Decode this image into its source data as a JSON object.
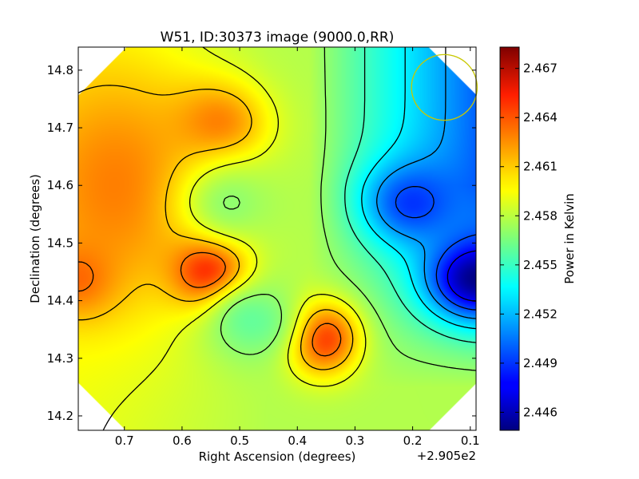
{
  "chart_data": {
    "type": "heatmap",
    "title": "W51, ID:30373 image (9000.0,RR)",
    "xlabel": "Right Ascension (degrees)",
    "ylabel": "Declination (degrees)",
    "x_offset_label": "+2.905e2",
    "x_ticks": [
      "0.7",
      "0.6",
      "0.5",
      "0.4",
      "0.3",
      "0.2",
      "0.1"
    ],
    "x_tick_values": [
      0.7,
      0.6,
      0.5,
      0.4,
      0.3,
      0.2,
      0.1
    ],
    "xlim": [
      0.78,
      0.09
    ],
    "y_ticks": [
      "14.2",
      "14.3",
      "14.4",
      "14.5",
      "14.6",
      "14.7",
      "14.8"
    ],
    "y_tick_values": [
      14.2,
      14.3,
      14.4,
      14.5,
      14.6,
      14.7,
      14.8
    ],
    "ylim": [
      14.175,
      14.84
    ],
    "colorbar": {
      "label": "Power in Kelvin",
      "ticks": [
        "2.467",
        "2.464",
        "2.461",
        "2.458",
        "2.455",
        "2.452",
        "2.449",
        "2.446"
      ],
      "tick_values": [
        2.467,
        2.464,
        2.461,
        2.458,
        2.455,
        2.452,
        2.449,
        2.446
      ],
      "range": [
        2.4449,
        2.4683
      ],
      "colormap": "jet"
    },
    "beam_circle": {
      "x": 0.145,
      "y": 14.77,
      "radius_deg": 0.057,
      "color": "#c8c800"
    },
    "features": [
      {
        "kind": "peak",
        "x": 0.552,
        "y": 14.45,
        "value": 2.4655
      },
      {
        "kind": "peak",
        "x": 0.357,
        "y": 14.335,
        "value": 2.4645
      },
      {
        "kind": "peak",
        "x": 0.78,
        "y": 14.44,
        "value": 2.463
      },
      {
        "kind": "bump",
        "x": 0.54,
        "y": 14.708,
        "value": 2.4625
      },
      {
        "kind": "dip",
        "x": 0.515,
        "y": 14.57,
        "value": 2.457
      },
      {
        "kind": "dip",
        "x": 0.48,
        "y": 14.365,
        "value": 2.456
      },
      {
        "kind": "dip",
        "x": 0.09,
        "y": 14.44,
        "value": 2.445
      },
      {
        "kind": "dip",
        "x": 0.2,
        "y": 14.57,
        "value": 2.449
      }
    ]
  }
}
